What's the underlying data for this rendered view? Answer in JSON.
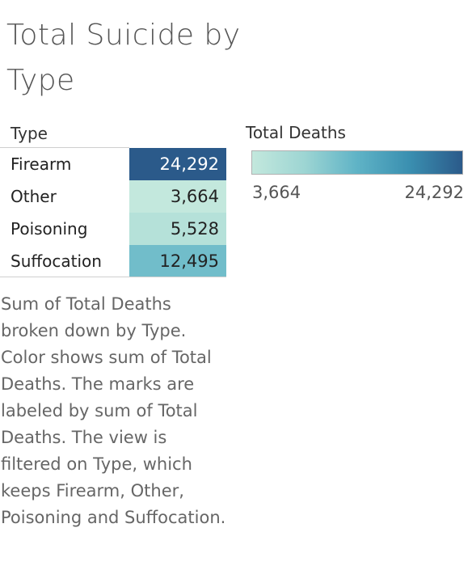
{
  "title": "Total Suicide by Type",
  "chart_data": {
    "type": "table",
    "title": "Total Suicide by Type",
    "row_header": "Type",
    "measure": "Total Deaths",
    "categories": [
      "Firearm",
      "Other",
      "Poisoning",
      "Suffocation"
    ],
    "values": [
      24292,
      3664,
      5528,
      12495
    ],
    "value_labels": [
      "24,292",
      "3,664",
      "5,528",
      "12,495"
    ],
    "color_scale": {
      "title": "Total Deaths",
      "min": 3664,
      "max": 24292,
      "min_label": "3,664",
      "max_label": "24,292",
      "min_color": "#bfe6dc",
      "max_color": "#2b5a8a"
    }
  },
  "caption": "Sum of Total Deaths broken down by Type.  Color shows sum of Total Deaths.  The marks are labeled by sum of Total Deaths. The view is filtered on Type, which keeps Firearm, Other, Poisoning and Suffocation."
}
